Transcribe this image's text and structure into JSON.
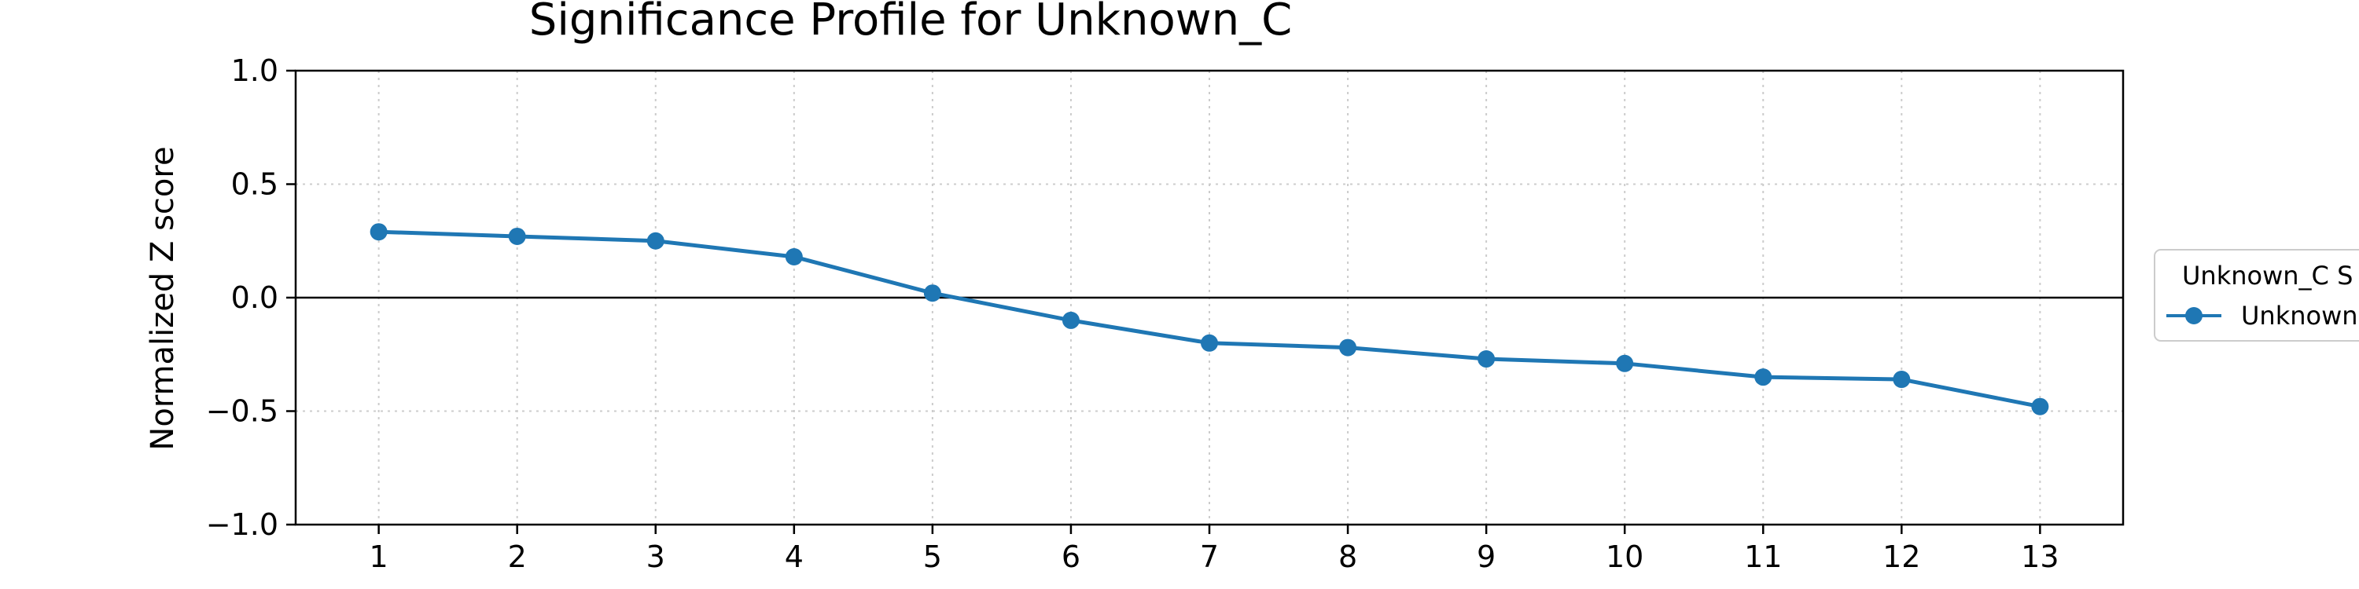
{
  "chart_data": {
    "type": "line",
    "title": "Significance Profile for Unknown_C",
    "xlabel": "",
    "ylabel": "Normalized Z score",
    "x": [
      1,
      2,
      3,
      4,
      5,
      6,
      7,
      8,
      9,
      10,
      11,
      12,
      13
    ],
    "x_ticks": [
      "1",
      "2",
      "3",
      "4",
      "5",
      "6",
      "7",
      "8",
      "9",
      "10",
      "11",
      "12",
      "13"
    ],
    "y_ticks": [
      "1.0",
      "0.5",
      "0.0",
      "−0.5",
      "−1.0"
    ],
    "y_tick_values": [
      1.0,
      0.5,
      0.0,
      -0.5,
      -1.0
    ],
    "ylim": [
      -1.0,
      1.0
    ],
    "xlim": [
      0.4,
      13.6
    ],
    "grid": true,
    "zero_line": true,
    "series": [
      {
        "name": "Unknown",
        "color": "#1f77b4",
        "marker": "circle",
        "values": [
          0.29,
          0.27,
          0.25,
          0.18,
          0.02,
          -0.1,
          -0.2,
          -0.22,
          -0.27,
          -0.29,
          -0.35,
          -0.36,
          -0.48
        ]
      }
    ],
    "legend": {
      "title": "Unknown_C S",
      "placement": "right",
      "entries": [
        "Unknown"
      ]
    }
  }
}
